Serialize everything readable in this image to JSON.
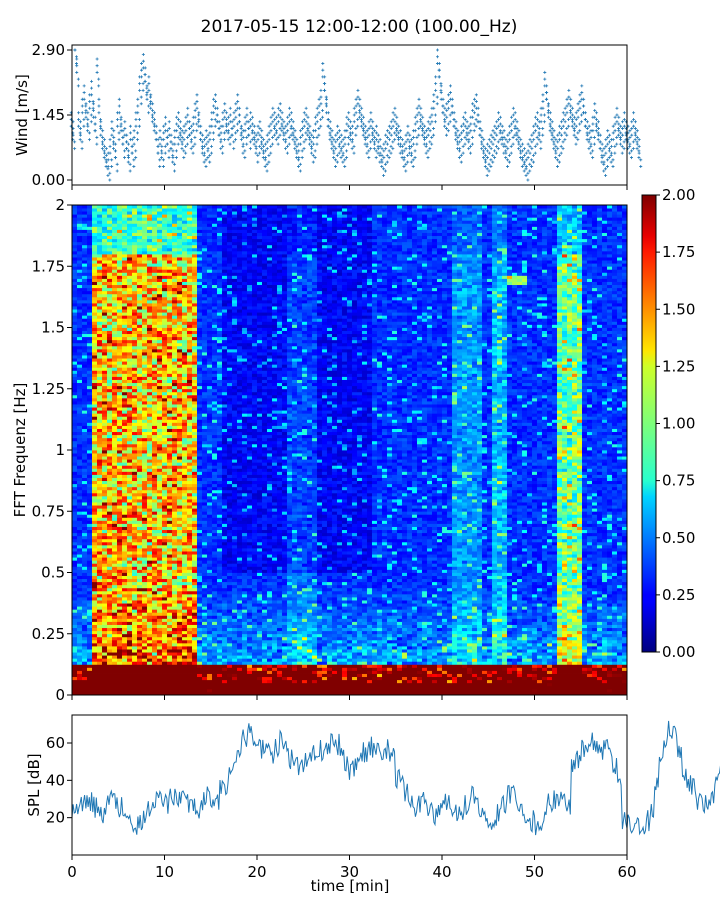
{
  "title": "2017-05-15 12:00-12:00 (100.00_Hz)",
  "chart_data": [
    {
      "type": "scatter",
      "panel": "wind",
      "ylabel": "Wind [m/s]",
      "xlim": [
        0,
        60
      ],
      "ylim": [
        0,
        2.9
      ],
      "yticks": [
        "0.00",
        "1.45",
        "2.90"
      ],
      "x_step_min": 0.2,
      "color": "#1f77b4",
      "marker": "+",
      "values": [
        1.2,
        1.0,
        2.9,
        2.4,
        1.2,
        1.0,
        1.5,
        1.8,
        1.4,
        1.2,
        1.6,
        1.9,
        1.4,
        1.1,
        2.4,
        1.5,
        1.0,
        0.8,
        0.6,
        0.4,
        0.3,
        0.6,
        1.0,
        0.8,
        0.5,
        1.2,
        1.5,
        1.1,
        0.8,
        1.0,
        0.7,
        0.5,
        0.9,
        0.6,
        0.8,
        1.2,
        1.5,
        2.0,
        2.3,
        2.5,
        2.2,
        1.8,
        2.0,
        1.6,
        1.4,
        1.2,
        0.9,
        0.6,
        0.8,
        0.6,
        0.9,
        1.1,
        0.8,
        1.0,
        0.7,
        0.5,
        0.8,
        1.1,
        1.2,
        1.0,
        0.8,
        0.9,
        1.1,
        1.3,
        1.0,
        0.9,
        1.1,
        1.4,
        1.6,
        1.2,
        0.9,
        0.7,
        0.6,
        0.8,
        0.7,
        0.9,
        1.2,
        1.5,
        1.6,
        1.3,
        1.0,
        0.9,
        1.2,
        1.4,
        1.2,
        1.1,
        1.3,
        1.0,
        1.2,
        1.4,
        1.6,
        1.3,
        0.9,
        0.8,
        1.1,
        1.3,
        1.0,
        1.2,
        1.1,
        0.9,
        0.7,
        0.9,
        1.0,
        0.8,
        0.6,
        0.5,
        0.7,
        0.9,
        1.1,
        1.3,
        1.2,
        1.1,
        1.3,
        1.4,
        1.2,
        1.0,
        0.9,
        1.1,
        1.3,
        1.2,
        1.0,
        0.8,
        0.6,
        0.5,
        0.8,
        1.0,
        1.2,
        1.3,
        1.1,
        0.9,
        0.7,
        0.8,
        1.1,
        1.3,
        1.5,
        1.7,
        2.3,
        2.0,
        1.5,
        1.2,
        1.0,
        0.8,
        0.6,
        0.7,
        0.9,
        0.8,
        0.7,
        0.6,
        0.8,
        1.1,
        1.2,
        1.0,
        0.9,
        1.3,
        1.5,
        1.7,
        1.5,
        1.3,
        1.1,
        0.9,
        0.8,
        1.0,
        1.2,
        1.0,
        0.8,
        0.9,
        0.7,
        0.6,
        0.4,
        0.5,
        0.7,
        0.8,
        0.9,
        1.0,
        1.2,
        1.3,
        1.1,
        0.9,
        0.8,
        0.6,
        0.5,
        0.7,
        0.9,
        0.7,
        0.6,
        0.8,
        1.1,
        1.3,
        1.5,
        1.3,
        1.1,
        0.9,
        0.8,
        1.0,
        1.1,
        1.3,
        1.6,
        2.0,
        2.6,
        2.3,
        1.8,
        1.5,
        1.3,
        1.4,
        1.6,
        1.8,
        1.5,
        1.2,
        1.0,
        0.8,
        0.7,
        0.9,
        1.1,
        1.2,
        1.0,
        0.9,
        1.1,
        1.4,
        1.5,
        1.6,
        1.3,
        1.0,
        0.8,
        0.6,
        0.4,
        0.5,
        0.6,
        0.7,
        0.8,
        0.9,
        1.0,
        1.2,
        1.1,
        0.9,
        0.8,
        0.6,
        0.7,
        0.9,
        1.1,
        1.3,
        1.2,
        1.0,
        0.8,
        0.6,
        0.5,
        0.4,
        0.3,
        0.5,
        0.6,
        0.7,
        0.9,
        1.1,
        1.2,
        1.0,
        1.3,
        1.6,
        2.1,
        1.8,
        1.4,
        1.2,
        1.0,
        0.8,
        0.6,
        0.7,
        0.9,
        1.0,
        1.2,
        1.3,
        1.5,
        1.7,
        1.5,
        1.3,
        1.1,
        1.2,
        1.4,
        1.6,
        1.8,
        1.5,
        1.2,
        1.0,
        0.9,
        0.8,
        1.1,
        1.4,
        1.2,
        1.0,
        0.7,
        0.5,
        0.4,
        0.6,
        0.8,
        0.7,
        0.6,
        0.9,
        1.1,
        1.3,
        1.1,
        0.9,
        1.0,
        1.2,
        1.0,
        0.9,
        0.8,
        1.0,
        1.2,
        1.0,
        0.8,
        0.6
      ]
    },
    {
      "type": "heatmap",
      "panel": "spectrogram",
      "ylabel": "FFT Frequenz [Hz]",
      "xlim": [
        0,
        60
      ],
      "ylim": [
        0,
        2
      ],
      "yticks": [
        "0",
        "0.25",
        "0.5",
        "0.75",
        "1",
        "1.25",
        "1.5",
        "1.75",
        "2"
      ],
      "colorbar": {
        "range": [
          0,
          2
        ],
        "ticks": [
          "0.00",
          "0.25",
          "0.50",
          "0.75",
          "1.00",
          "1.25",
          "1.50",
          "1.75",
          "2.00"
        ],
        "cmap": "jet"
      }
    },
    {
      "type": "line",
      "panel": "spl",
      "ylabel": "SPL [dB]",
      "xlabel": "time [min]",
      "xlim": [
        0,
        60
      ],
      "ylim": [
        0,
        75
      ],
      "yticks": [
        "20",
        "40",
        "60"
      ],
      "xticks": [
        "0",
        "10",
        "20",
        "30",
        "40",
        "50",
        "60"
      ],
      "color": "#1f77b4",
      "x_step_min": 0.5,
      "values": [
        26,
        24,
        27,
        30,
        28,
        25,
        23,
        27,
        31,
        29,
        26,
        22,
        20,
        18,
        16,
        19,
        24,
        28,
        31,
        30,
        27,
        33,
        32,
        29,
        31,
        28,
        26,
        25,
        30,
        32,
        29,
        27,
        36,
        38,
        45,
        55,
        58,
        62,
        66,
        63,
        60,
        57,
        55,
        52,
        58,
        61,
        59,
        52,
        48,
        47,
        50,
        53,
        55,
        56,
        54,
        57,
        61,
        59,
        55,
        50,
        45,
        47,
        52,
        55,
        58,
        57,
        55,
        54,
        56,
        55,
        42,
        38,
        33,
        28,
        25,
        27,
        30,
        25,
        22,
        26,
        30,
        28,
        26,
        24,
        23,
        27,
        31,
        29,
        25,
        20,
        14,
        16,
        22,
        28,
        33,
        36,
        28,
        24,
        20,
        18,
        16,
        19,
        22,
        27,
        30,
        32,
        28,
        26,
        46,
        52,
        56,
        60,
        62,
        58,
        54,
        56,
        52,
        46,
        36,
        18,
        18,
        17,
        16,
        15,
        18,
        22,
        36,
        55,
        62,
        68,
        64,
        54,
        45,
        40,
        36,
        30,
        28,
        28,
        32,
        40,
        48,
        50,
        53,
        55,
        57,
        58,
        59,
        58,
        60,
        56,
        51
      ]
    }
  ]
}
